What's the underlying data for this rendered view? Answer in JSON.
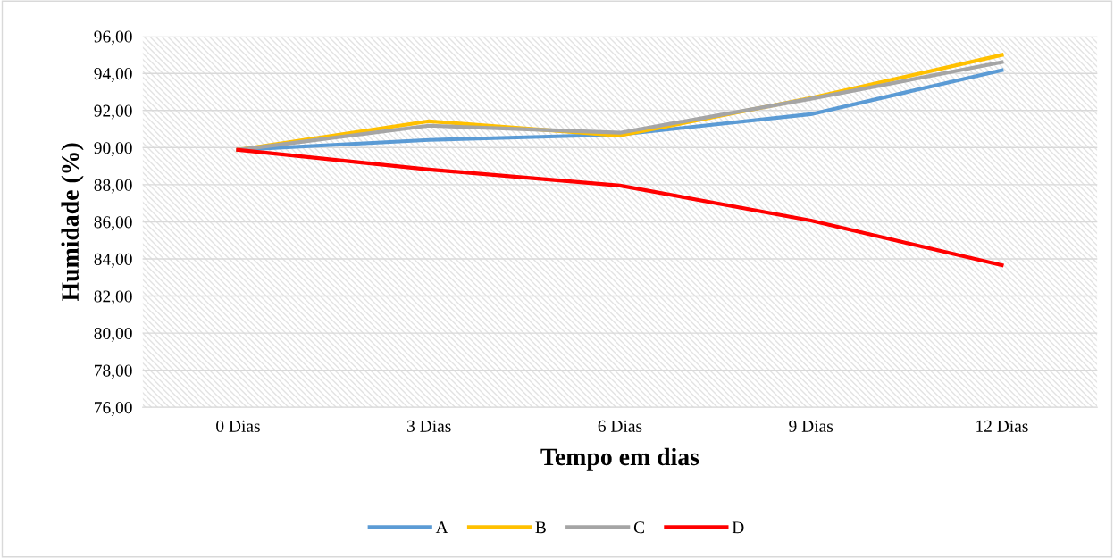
{
  "chart_data": {
    "type": "line",
    "xlabel": "Tempo em dias",
    "ylabel": "Humidade (%)",
    "categories": [
      "0 Dias",
      "3 Dias",
      "6 Dias",
      "9 Dias",
      "12 Dias"
    ],
    "series": [
      {
        "name": "A",
        "color": "#5b9bd5",
        "values": [
          89.88,
          90.41,
          90.7,
          91.8,
          94.17
        ]
      },
      {
        "name": "B",
        "color": "#ffc000",
        "values": [
          89.88,
          91.42,
          90.65,
          92.67,
          94.99
        ]
      },
      {
        "name": "C",
        "color": "#a5a5a5",
        "values": [
          89.88,
          91.18,
          90.8,
          92.63,
          94.6
        ]
      },
      {
        "name": "D",
        "color": "#ff0000",
        "values": [
          89.88,
          88.82,
          87.95,
          86.07,
          83.66
        ]
      }
    ],
    "ylim": [
      76,
      96
    ],
    "yticks": [
      {
        "value": 76,
        "label": "76,00"
      },
      {
        "value": 78,
        "label": "78,00"
      },
      {
        "value": 80,
        "label": "80,00"
      },
      {
        "value": 82,
        "label": "82,00"
      },
      {
        "value": 84,
        "label": "84,00"
      },
      {
        "value": 86,
        "label": "86,00"
      },
      {
        "value": 88,
        "label": "88,00"
      },
      {
        "value": 90,
        "label": "90,00"
      },
      {
        "value": 92,
        "label": "92,00"
      },
      {
        "value": 94,
        "label": "94,00"
      },
      {
        "value": 96,
        "label": "96,00"
      }
    ],
    "grid": "y",
    "legend": "bottom",
    "marker": "none",
    "line_style": "solid"
  }
}
